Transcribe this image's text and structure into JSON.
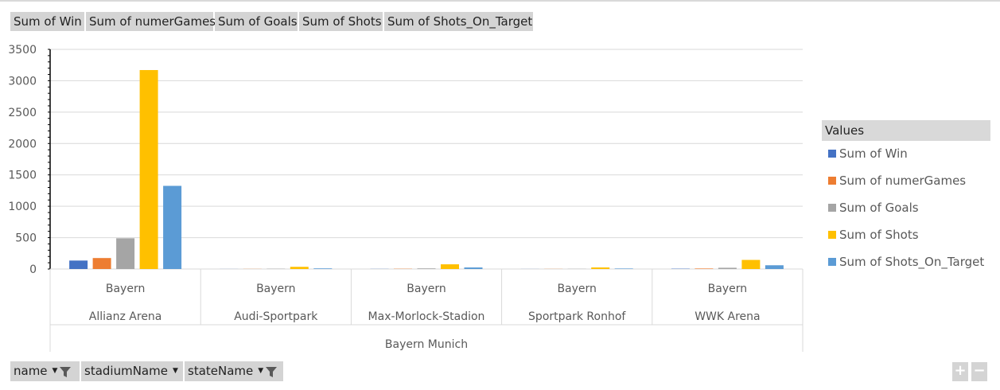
{
  "value_fields": [
    "Sum of Win",
    "Sum of numerGames",
    "Sum of Goals",
    "Sum of Shots",
    "Sum of Shots_On_Target"
  ],
  "axis_fields": [
    {
      "label": "name",
      "icon": "filter-icon"
    },
    {
      "label": "stadiumName",
      "icon": "dropdown-icon"
    },
    {
      "label": "stateName",
      "icon": "filter-icon"
    }
  ],
  "legend": {
    "title": "Values"
  },
  "zoom": {
    "plus": "+",
    "minus": "−"
  },
  "colors": [
    "#4472c4",
    "#ed7d31",
    "#a5a5a5",
    "#ffc000",
    "#5b9bd5"
  ],
  "chart_data": {
    "type": "bar",
    "title": "",
    "xlabel": "",
    "ylabel": "",
    "ylim": [
      0,
      3500
    ],
    "yticks": [
      0,
      500,
      1000,
      1500,
      2000,
      2500,
      3000,
      3500
    ],
    "grid": true,
    "legend_position": "right",
    "categories": [
      {
        "name": "Bayern",
        "stadium": "Allianz Arena"
      },
      {
        "name": "Bayern",
        "stadium": "Audi-Sportpark"
      },
      {
        "name": "Bayern",
        "stadium": "Max-Morlock-Stadion"
      },
      {
        "name": "Bayern",
        "stadium": "Sportpark Ronhof"
      },
      {
        "name": "Bayern",
        "stadium": "WWK Arena"
      }
    ],
    "group_label": "Bayern Munich",
    "series": [
      {
        "name": "Sum of Win",
        "values": [
          135,
          1,
          2,
          1,
          5
        ]
      },
      {
        "name": "Sum of numerGames",
        "values": [
          175,
          2,
          4,
          2,
          8
        ]
      },
      {
        "name": "Sum of Goals",
        "values": [
          490,
          5,
          10,
          3,
          20
        ]
      },
      {
        "name": "Sum of Shots",
        "values": [
          3170,
          35,
          75,
          25,
          145
        ]
      },
      {
        "name": "Sum of Shots_On_Target",
        "values": [
          1325,
          10,
          25,
          8,
          60
        ]
      }
    ]
  }
}
